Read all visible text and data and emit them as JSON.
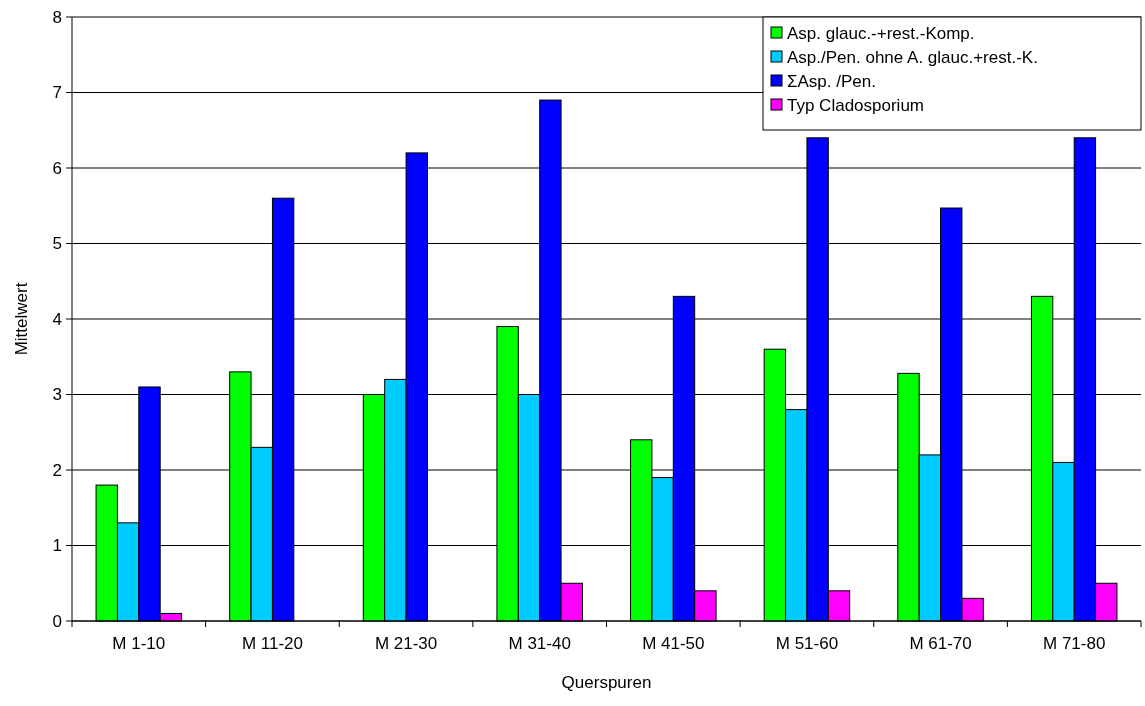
{
  "chart_data": {
    "type": "bar",
    "xlabel": "Querspuren",
    "ylabel": "Mittelwert",
    "categories": [
      "M 1-10",
      "M 11-20",
      "M 21-30",
      "M 31-40",
      "M 41-50",
      "M 51-60",
      "M 61-70",
      "M 71-80"
    ],
    "series": [
      {
        "name": "Asp. glauc.-+rest.-Komp.",
        "color": "#00ff00",
        "values": [
          1.8,
          3.3,
          3.0,
          3.9,
          2.4,
          3.6,
          3.28,
          4.3
        ]
      },
      {
        "name": "Asp./Pen. ohne A. glauc.+rest.-K.",
        "color": "#00ccff",
        "values": [
          1.3,
          2.3,
          3.2,
          3.0,
          1.9,
          2.8,
          2.2,
          2.1
        ]
      },
      {
        "name": "ΣAsp. /Pen.",
        "color": "#0000ff",
        "values": [
          3.1,
          5.6,
          6.2,
          6.9,
          4.3,
          6.4,
          5.47,
          6.4
        ]
      },
      {
        "name": "Typ Cladosporium",
        "color": "#ff00ff",
        "values": [
          0.1,
          null,
          null,
          0.5,
          0.4,
          0.4,
          0.3,
          0.5
        ]
      }
    ],
    "ylim": [
      0,
      8
    ],
    "yticks": [
      0,
      1,
      2,
      3,
      4,
      5,
      6,
      7,
      8
    ],
    "grid": "y",
    "legend": "top right"
  }
}
